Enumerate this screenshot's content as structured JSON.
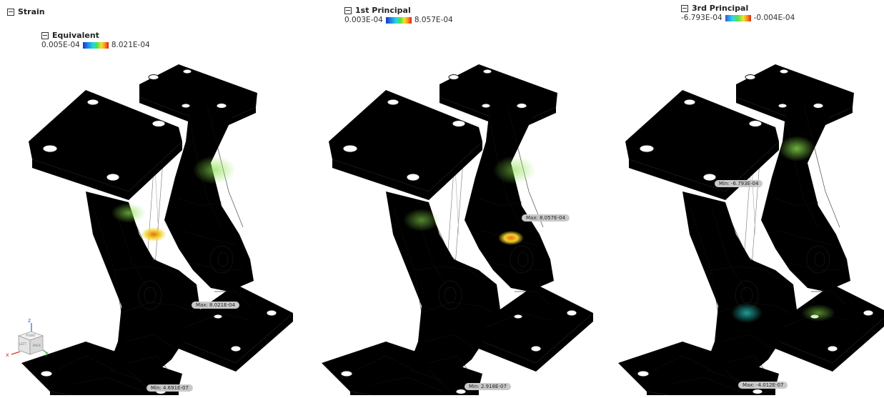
{
  "legend": {
    "strain": "Strain",
    "equivalent": {
      "title": "Equivalent",
      "min": "0.005E-04",
      "max": "8.021E-04"
    },
    "first_principal": {
      "title": "1st Principal",
      "min": "0.003E-04",
      "max": "8.057E-04"
    },
    "third_principal": {
      "title": "3rd Principal",
      "min": "-6.793E-04",
      "max": "-0.004E-04"
    }
  },
  "panels": {
    "equivalent": {
      "max_tag": "Max: 8.021E-04",
      "min_tag": "Min: 4.691E-07"
    },
    "first": {
      "max_tag": "Max: 8.057E-04",
      "min_tag": "Min: 2.918E-07"
    },
    "third": {
      "max_tag": "Max: -4.012E-07",
      "min_tag": "Min: -6.793E-04"
    }
  },
  "viewcube": {
    "left": "LEFT",
    "front": "FRONT",
    "back": "BACK",
    "x": "x",
    "y": "y",
    "z": "z"
  },
  "colors": {
    "low": "#1238d6",
    "mid": "#4fe04a",
    "high": "#e01818",
    "orange_body": "#e0661e"
  }
}
